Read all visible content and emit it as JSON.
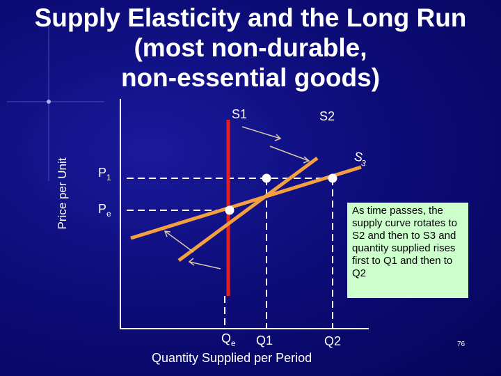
{
  "title_line1": "Supply Elasticity and the Long Run",
  "title_line2": "(most non-durable,",
  "title_line3": "non-essential goods)",
  "y_axis_label": "Price per Unit",
  "x_axis_label": "Quantity Supplied per Period",
  "curves": {
    "s1": "S1",
    "s2": "S2",
    "s3": "S",
    "s3_sub": "3"
  },
  "price_labels": {
    "p1": "P",
    "p1_sub": "1",
    "pe": "P",
    "pe_sub": "e"
  },
  "quantity_labels": {
    "qe": "Q",
    "qe_sub": "e",
    "q1": "Q1",
    "q2": "Q2"
  },
  "note": "As time passes, the supply curve rotates to S2 and then to S3 and quantity supplied rises first to Q1 and then to Q2",
  "page_number": "76",
  "colors": {
    "background": "#0d0d7a",
    "s1_curve": "#e61e1e",
    "rotating_curves": "#f5a040",
    "note_box": "#ccffcc"
  }
}
